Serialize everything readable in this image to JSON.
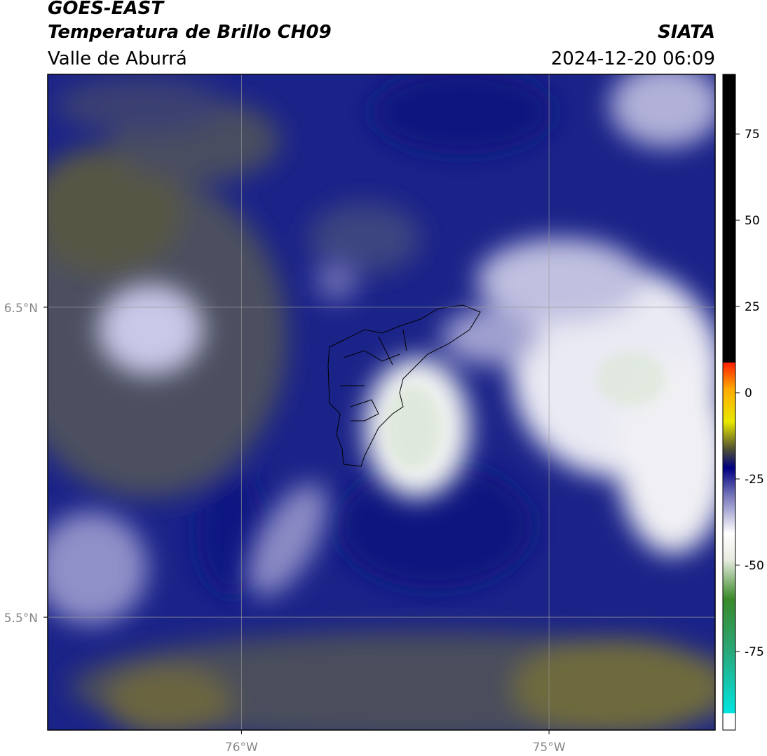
{
  "header": {
    "satellite": "GOES-EAST",
    "title": "Temperatura de Brillo CH09",
    "region": "Valle de Aburrá",
    "source": "SIATA",
    "datetime": "2024-12-20 06:09"
  },
  "map": {
    "lonlim": [
      -76.63,
      -74.46
    ],
    "latlim": [
      5.136,
      7.251
    ],
    "lonticks": [
      {
        "value": -76,
        "label": "76°W"
      },
      {
        "value": -75,
        "label": "75°W"
      }
    ],
    "latticks": [
      {
        "value": 6.5,
        "label": "6.5°N"
      },
      {
        "value": 5.5,
        "label": "5.5°N"
      }
    ]
  },
  "colorbar": {
    "lim": [
      -97.8,
      92.3
    ],
    "ticks": [
      75,
      50,
      25,
      0,
      -25,
      -50,
      -75
    ]
  }
}
